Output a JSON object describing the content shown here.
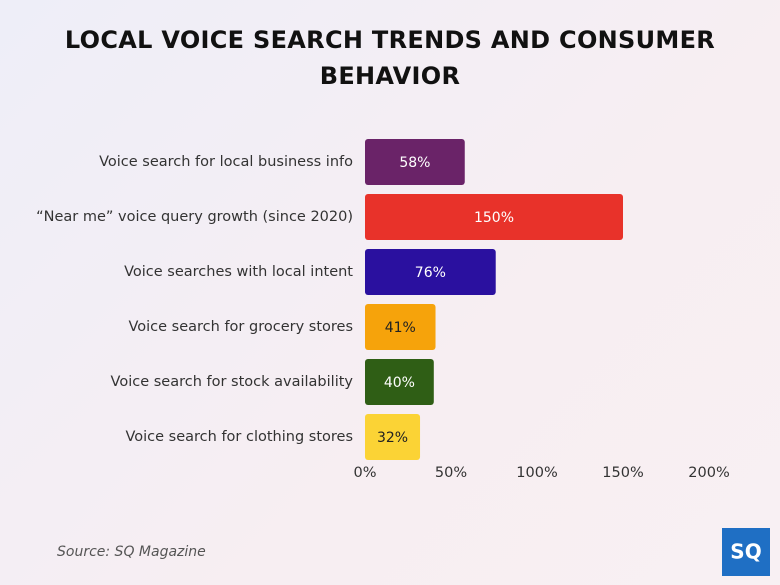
{
  "chart_data": {
    "type": "bar",
    "orientation": "horizontal",
    "title": "LOCAL VOICE SEARCH TRENDS AND CONSUMER BEHAVIOR",
    "categories": [
      "Voice search for local business info",
      "“Near me” voice query growth (since 2020)",
      "Voice searches with local intent",
      "Voice search for grocery stores",
      "Voice search for stock availability",
      "Voice search for clothing stores"
    ],
    "values": [
      58,
      150,
      76,
      41,
      40,
      32
    ],
    "value_labels": [
      "58%",
      "150%",
      "76%",
      "41%",
      "40%",
      "32%"
    ],
    "colors": [
      "#6a2368",
      "#e8322a",
      "#2a109f",
      "#f6a30b",
      "#2f5e15",
      "#fbd335"
    ],
    "xlim": [
      0,
      200
    ],
    "xticks": [
      {
        "value": 0,
        "label": "0%"
      },
      {
        "value": 50,
        "label": "50%"
      },
      {
        "value": 100,
        "label": "100%"
      },
      {
        "value": 150,
        "label": "150%"
      },
      {
        "value": 200,
        "label": "200%"
      }
    ],
    "grid": false,
    "source": "Source: SQ Magazine",
    "logo": "SQ"
  }
}
